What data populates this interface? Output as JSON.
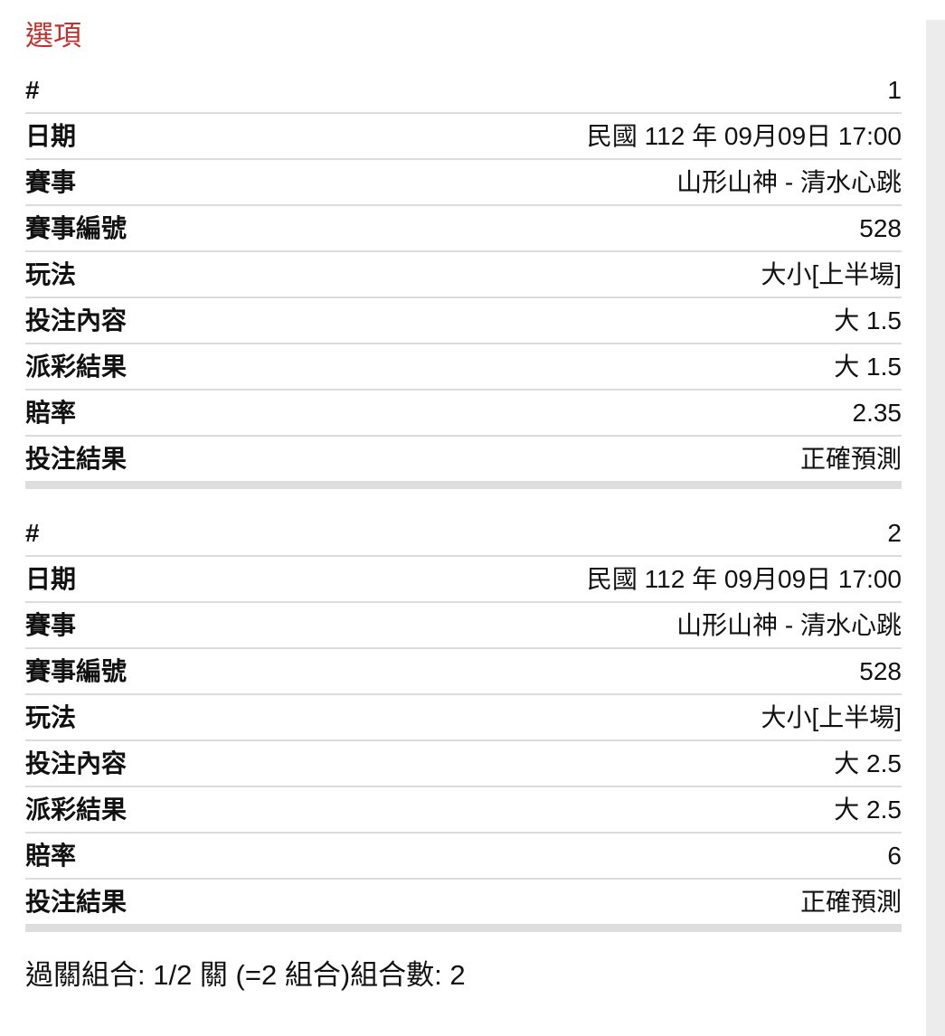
{
  "header": {
    "title": "選項"
  },
  "colors": {
    "accent_red": "#c1302b",
    "divider": "#dcdcdc",
    "section_separator": "#dedede",
    "right_gutter": "#ececec",
    "text": "#111111"
  },
  "legs": [
    {
      "rows": [
        {
          "label": "#",
          "value": "1"
        },
        {
          "label": "日期",
          "value": "民國 112 年 09月09日 17:00"
        },
        {
          "label": "賽事",
          "value": "山形山神 - 清水心跳"
        },
        {
          "label": "賽事編號",
          "value": "528"
        },
        {
          "label": "玩法",
          "value": "大小[上半場]"
        },
        {
          "label": "投注內容",
          "value": "大 1.5"
        },
        {
          "label": "派彩結果",
          "value": "大 1.5"
        },
        {
          "label": "賠率",
          "value": "2.35"
        },
        {
          "label": "投注結果",
          "value": "正確預測"
        }
      ]
    },
    {
      "rows": [
        {
          "label": "#",
          "value": "2"
        },
        {
          "label": "日期",
          "value": "民國 112 年 09月09日 17:00"
        },
        {
          "label": "賽事",
          "value": "山形山神 - 清水心跳"
        },
        {
          "label": "賽事編號",
          "value": "528"
        },
        {
          "label": "玩法",
          "value": "大小[上半場]"
        },
        {
          "label": "投注內容",
          "value": "大 2.5"
        },
        {
          "label": "派彩結果",
          "value": "大 2.5"
        },
        {
          "label": "賠率",
          "value": "6"
        },
        {
          "label": "投注結果",
          "value": "正確預測"
        }
      ]
    }
  ],
  "footer": {
    "summary": "過關組合: 1/2 關 (=2 組合)組合數: 2"
  }
}
